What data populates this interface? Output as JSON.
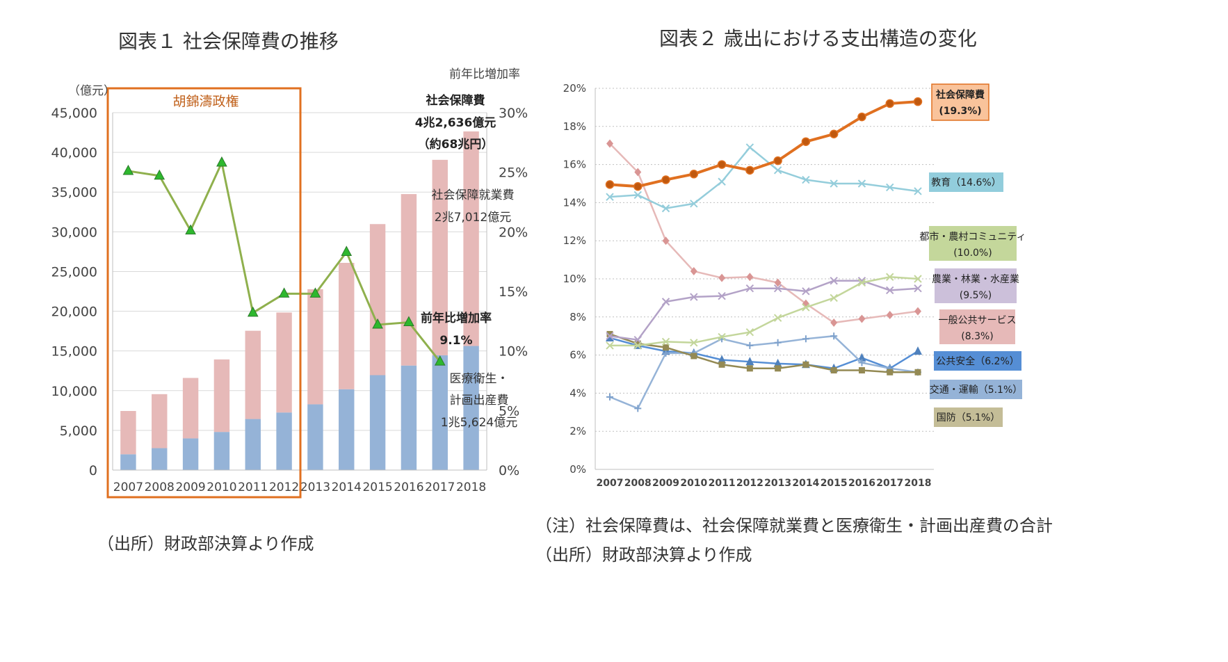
{
  "fig1": {
    "title": "図表１ 社会保障費の推移",
    "source": "（出所）財政部決算より作成",
    "unit_label": "（億元）",
    "right_axis_title": "前年比増加率",
    "bracket_label": "胡錦濤政権",
    "annotations": {
      "total_l1": "社会保障費",
      "total_l2": "4兆2,636億元",
      "total_l3": "（約68兆円）",
      "employ_l1": "社会保障就業費",
      "employ_l2": "2兆7,012億元",
      "growth_l1": "前年比増加率",
      "growth_l2": "9.1%",
      "medical_l1": "医療衛生・",
      "medical_l2": "計画出産費",
      "medical_l3": "1兆5,624億元"
    }
  },
  "fig2": {
    "title": "図表２ 歳出における支出構造の変化",
    "note1": "（注）社会保障費は、社会保障就業費と医療衛生・計画出産費の合計",
    "note2": "（出所）財政部決算より作成"
  },
  "chart_data": [
    {
      "type": "bar",
      "stacked": true,
      "categories": [
        "2007",
        "2008",
        "2009",
        "2010",
        "2011",
        "2012",
        "2013",
        "2014",
        "2015",
        "2016",
        "2017",
        "2018"
      ],
      "y_ticks": [
        "0",
        "5,000",
        "10,000",
        "15,000",
        "20,000",
        "25,000",
        "30,000",
        "35,000",
        "40,000",
        "45,000"
      ],
      "y2_ticks": [
        "0%",
        "5%",
        "10%",
        "15%",
        "20%",
        "25%",
        "30%"
      ],
      "ylim": [
        0,
        45000
      ],
      "y2lim": [
        0,
        30
      ],
      "series": [
        {
          "name": "医療衛生・計画出産費",
          "color": "#95b3d7",
          "values": [
            1990,
            2760,
            3990,
            4800,
            6430,
            7250,
            8280,
            10180,
            11950,
            13160,
            14450,
            15624
          ]
        },
        {
          "name": "社会保障就業費",
          "color": "#e6b9b8",
          "values": [
            5450,
            6800,
            7610,
            9130,
            11110,
            12590,
            14490,
            15910,
            19020,
            21590,
            24610,
            27012
          ]
        }
      ],
      "growth_line": {
        "name": "前年比増加率",
        "color": "#8fb04d",
        "marker_color": "#2eb82e",
        "values": [
          25.1,
          24.7,
          20.1,
          25.8,
          13.2,
          14.8,
          14.8,
          18.3,
          12.2,
          12.4,
          9.1,
          null
        ]
      }
    },
    {
      "type": "line",
      "x": [
        "2007",
        "2008",
        "2009",
        "2010",
        "2011",
        "2012",
        "2013",
        "2014",
        "2015",
        "2016",
        "2017",
        "2018"
      ],
      "y_ticks": [
        "0%",
        "2%",
        "4%",
        "6%",
        "8%",
        "10%",
        "12%",
        "14%",
        "16%",
        "18%",
        "20%"
      ],
      "ylim": [
        0,
        20
      ],
      "grid": true,
      "series": [
        {
          "label": "社会保障費",
          "value_label": "(19.3%)",
          "color": "#e07020",
          "marker": "circle",
          "width": 4,
          "legend_bg": "#f9c39b",
          "legend_border": "#e07020",
          "values": [
            14.95,
            14.85,
            15.2,
            15.5,
            16.0,
            15.7,
            16.2,
            17.2,
            17.6,
            18.5,
            19.2,
            19.3
          ]
        },
        {
          "label": "教育（14.6%）",
          "color": "#94cddb",
          "marker": "x",
          "width": 2.5,
          "legend_bg": "#92cddc",
          "values": [
            14.3,
            14.4,
            13.7,
            13.95,
            15.1,
            16.9,
            15.7,
            15.2,
            15.0,
            15.0,
            14.8,
            14.6
          ]
        },
        {
          "label": "都市・農村コミュニティ",
          "value_label": "(10.0%)",
          "color": "#c3d69b",
          "marker": "x",
          "width": 2.5,
          "legend_bg": "#c4d79b",
          "values": [
            6.5,
            6.5,
            6.7,
            6.65,
            6.95,
            7.2,
            7.95,
            8.5,
            9.0,
            9.8,
            10.1,
            10.0
          ]
        },
        {
          "label": "農業・林業・水産業",
          "value_label": "(9.5%)",
          "color": "#b3a2c7",
          "marker": "x",
          "width": 2.5,
          "legend_bg": "#ccc0da",
          "values": [
            7.0,
            6.8,
            8.8,
            9.05,
            9.1,
            9.5,
            9.5,
            9.35,
            9.9,
            9.9,
            9.4,
            9.5
          ]
        },
        {
          "label": "一般公共サービス",
          "value_label": "(8.3%)",
          "color": "#e6b9b8",
          "marker": "diamond",
          "width": 2.5,
          "legend_bg": "#e6b9b8",
          "values": [
            17.1,
            15.6,
            12.0,
            10.4,
            10.05,
            10.1,
            9.8,
            8.7,
            7.7,
            7.9,
            8.1,
            8.3
          ]
        },
        {
          "label": "公共安全（6.2%）",
          "color": "#558ed5",
          "marker": "triangle",
          "width": 2.5,
          "legend_bg": "#558ed5",
          "values": [
            6.9,
            6.5,
            6.2,
            6.1,
            5.75,
            5.65,
            5.55,
            5.5,
            5.3,
            5.85,
            5.3,
            6.2
          ]
        },
        {
          "label": "交通・運輸（5.1%）",
          "color": "#95b3d7",
          "marker": "plus",
          "width": 2.5,
          "legend_bg": "#95b3d7",
          "values": [
            3.8,
            3.2,
            6.1,
            6.1,
            6.85,
            6.5,
            6.65,
            6.85,
            7.0,
            5.6,
            5.3,
            5.1
          ]
        },
        {
          "label": "国防（5.1%）",
          "color": "#938953",
          "marker": "square",
          "width": 2.5,
          "legend_bg": "#c4bd97",
          "values": [
            7.1,
            6.6,
            6.4,
            5.95,
            5.5,
            5.3,
            5.3,
            5.5,
            5.2,
            5.2,
            5.1,
            5.1
          ]
        }
      ]
    }
  ]
}
